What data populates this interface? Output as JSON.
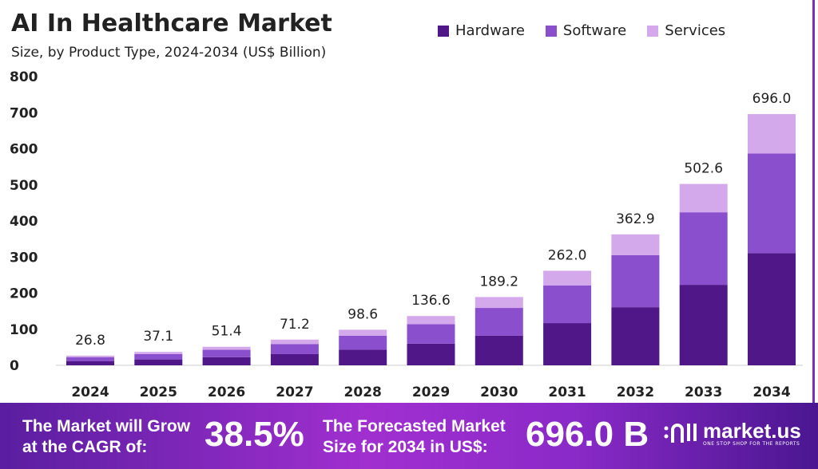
{
  "chart_data": {
    "type": "bar",
    "stacked": true,
    "title": "AI In Healthcare Market",
    "subtitle": "Size, by Product Type, 2024-2034 (US$ Billion)",
    "xlabel": "",
    "ylabel": "",
    "ylim": [
      0,
      800
    ],
    "yticks": [
      0,
      100,
      200,
      300,
      400,
      500,
      600,
      700,
      800
    ],
    "grid": false,
    "legend_position": "top-right",
    "categories": [
      "2024",
      "2025",
      "2026",
      "2027",
      "2028",
      "2029",
      "2030",
      "2031",
      "2032",
      "2033",
      "2034"
    ],
    "series": [
      {
        "name": "Hardware",
        "color": "#4f1787",
        "values": [
          11.8,
          16.3,
          22.5,
          31.0,
          43.0,
          60.0,
          82.0,
          117.0,
          161.0,
          223.0,
          311.0
        ]
      },
      {
        "name": "Software",
        "color": "#8a4fcc",
        "values": [
          10.7,
          14.8,
          20.5,
          28.0,
          39.0,
          54.0,
          77.0,
          104.0,
          144.0,
          201.0,
          276.0
        ]
      },
      {
        "name": "Services",
        "color": "#d4a9ec",
        "values": [
          4.3,
          6.0,
          8.4,
          12.2,
          16.6,
          22.6,
          30.2,
          41.0,
          57.9,
          78.6,
          109.0
        ]
      }
    ],
    "totals": [
      "26.8",
      "37.1",
      "51.4",
      "71.2",
      "98.6",
      "136.6",
      "189.2",
      "262.0",
      "362.9",
      "502.6",
      "696.0"
    ]
  },
  "footer": {
    "cagr_label_line1": "The Market will Grow",
    "cagr_label_line2": "at the CAGR of:",
    "cagr_value": "38.5%",
    "forecast_label_line1": "The Forecasted Market",
    "forecast_label_line2": "Size for 2034 in US$:",
    "forecast_value": "696.0 B",
    "brand_name": "market.us",
    "brand_tagline": "ONE STOP SHOP FOR THE REPORTS"
  }
}
